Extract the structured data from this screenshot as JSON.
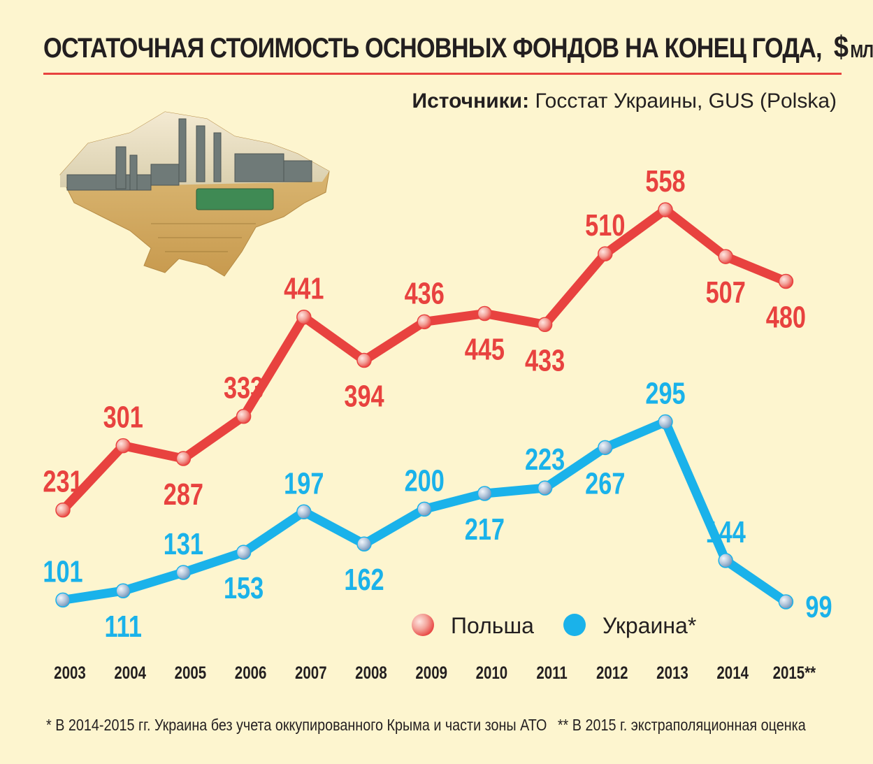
{
  "header": {
    "title": "ОСТАТОЧНАЯ СТОИМОСТЬ ОСНОВНЫХ ФОНДОВ НА КОНЕЦ ГОДА,",
    "unit_symbol": "$",
    "unit": "МЛРД"
  },
  "source": {
    "label": "Источники:",
    "text": "Госстат Украины, GUS (Polska)"
  },
  "footnotes": {
    "note1": "* В 2014-2015 гг. Украина без учета оккупированного Крыма и части зоны АТО",
    "note2": "** В 2015 г. экстраполяционная оценка"
  },
  "colors": {
    "poland": "#e8423f",
    "ukraine": "#1ab2ea",
    "background": "#fdf5cf"
  },
  "chart_data": {
    "type": "line",
    "x": [
      "2003",
      "2004",
      "2005",
      "2006",
      "2007",
      "2008",
      "2009",
      "2010",
      "2011",
      "2012",
      "2013",
      "2014",
      "2015**"
    ],
    "series": [
      {
        "name": "Польша",
        "color": "#e8423f",
        "values": [
          231,
          301,
          287,
          333,
          441,
          394,
          436,
          445,
          433,
          510,
          558,
          507,
          480
        ],
        "label_pos": [
          "above",
          "above",
          "below",
          "above",
          "above",
          "below",
          "above",
          "below",
          "below",
          "above",
          "above",
          "below",
          "below"
        ]
      },
      {
        "name": "Украина*",
        "color": "#1ab2ea",
        "values": [
          101,
          111,
          131,
          153,
          197,
          162,
          200,
          217,
          223,
          267,
          295,
          144,
          99
        ],
        "label_pos": [
          "above",
          "below",
          "above",
          "below",
          "above",
          "below",
          "above",
          "below",
          "above",
          "below",
          "above",
          "above",
          "right"
        ]
      }
    ],
    "legend": "bottom-right",
    "grid": false
  }
}
